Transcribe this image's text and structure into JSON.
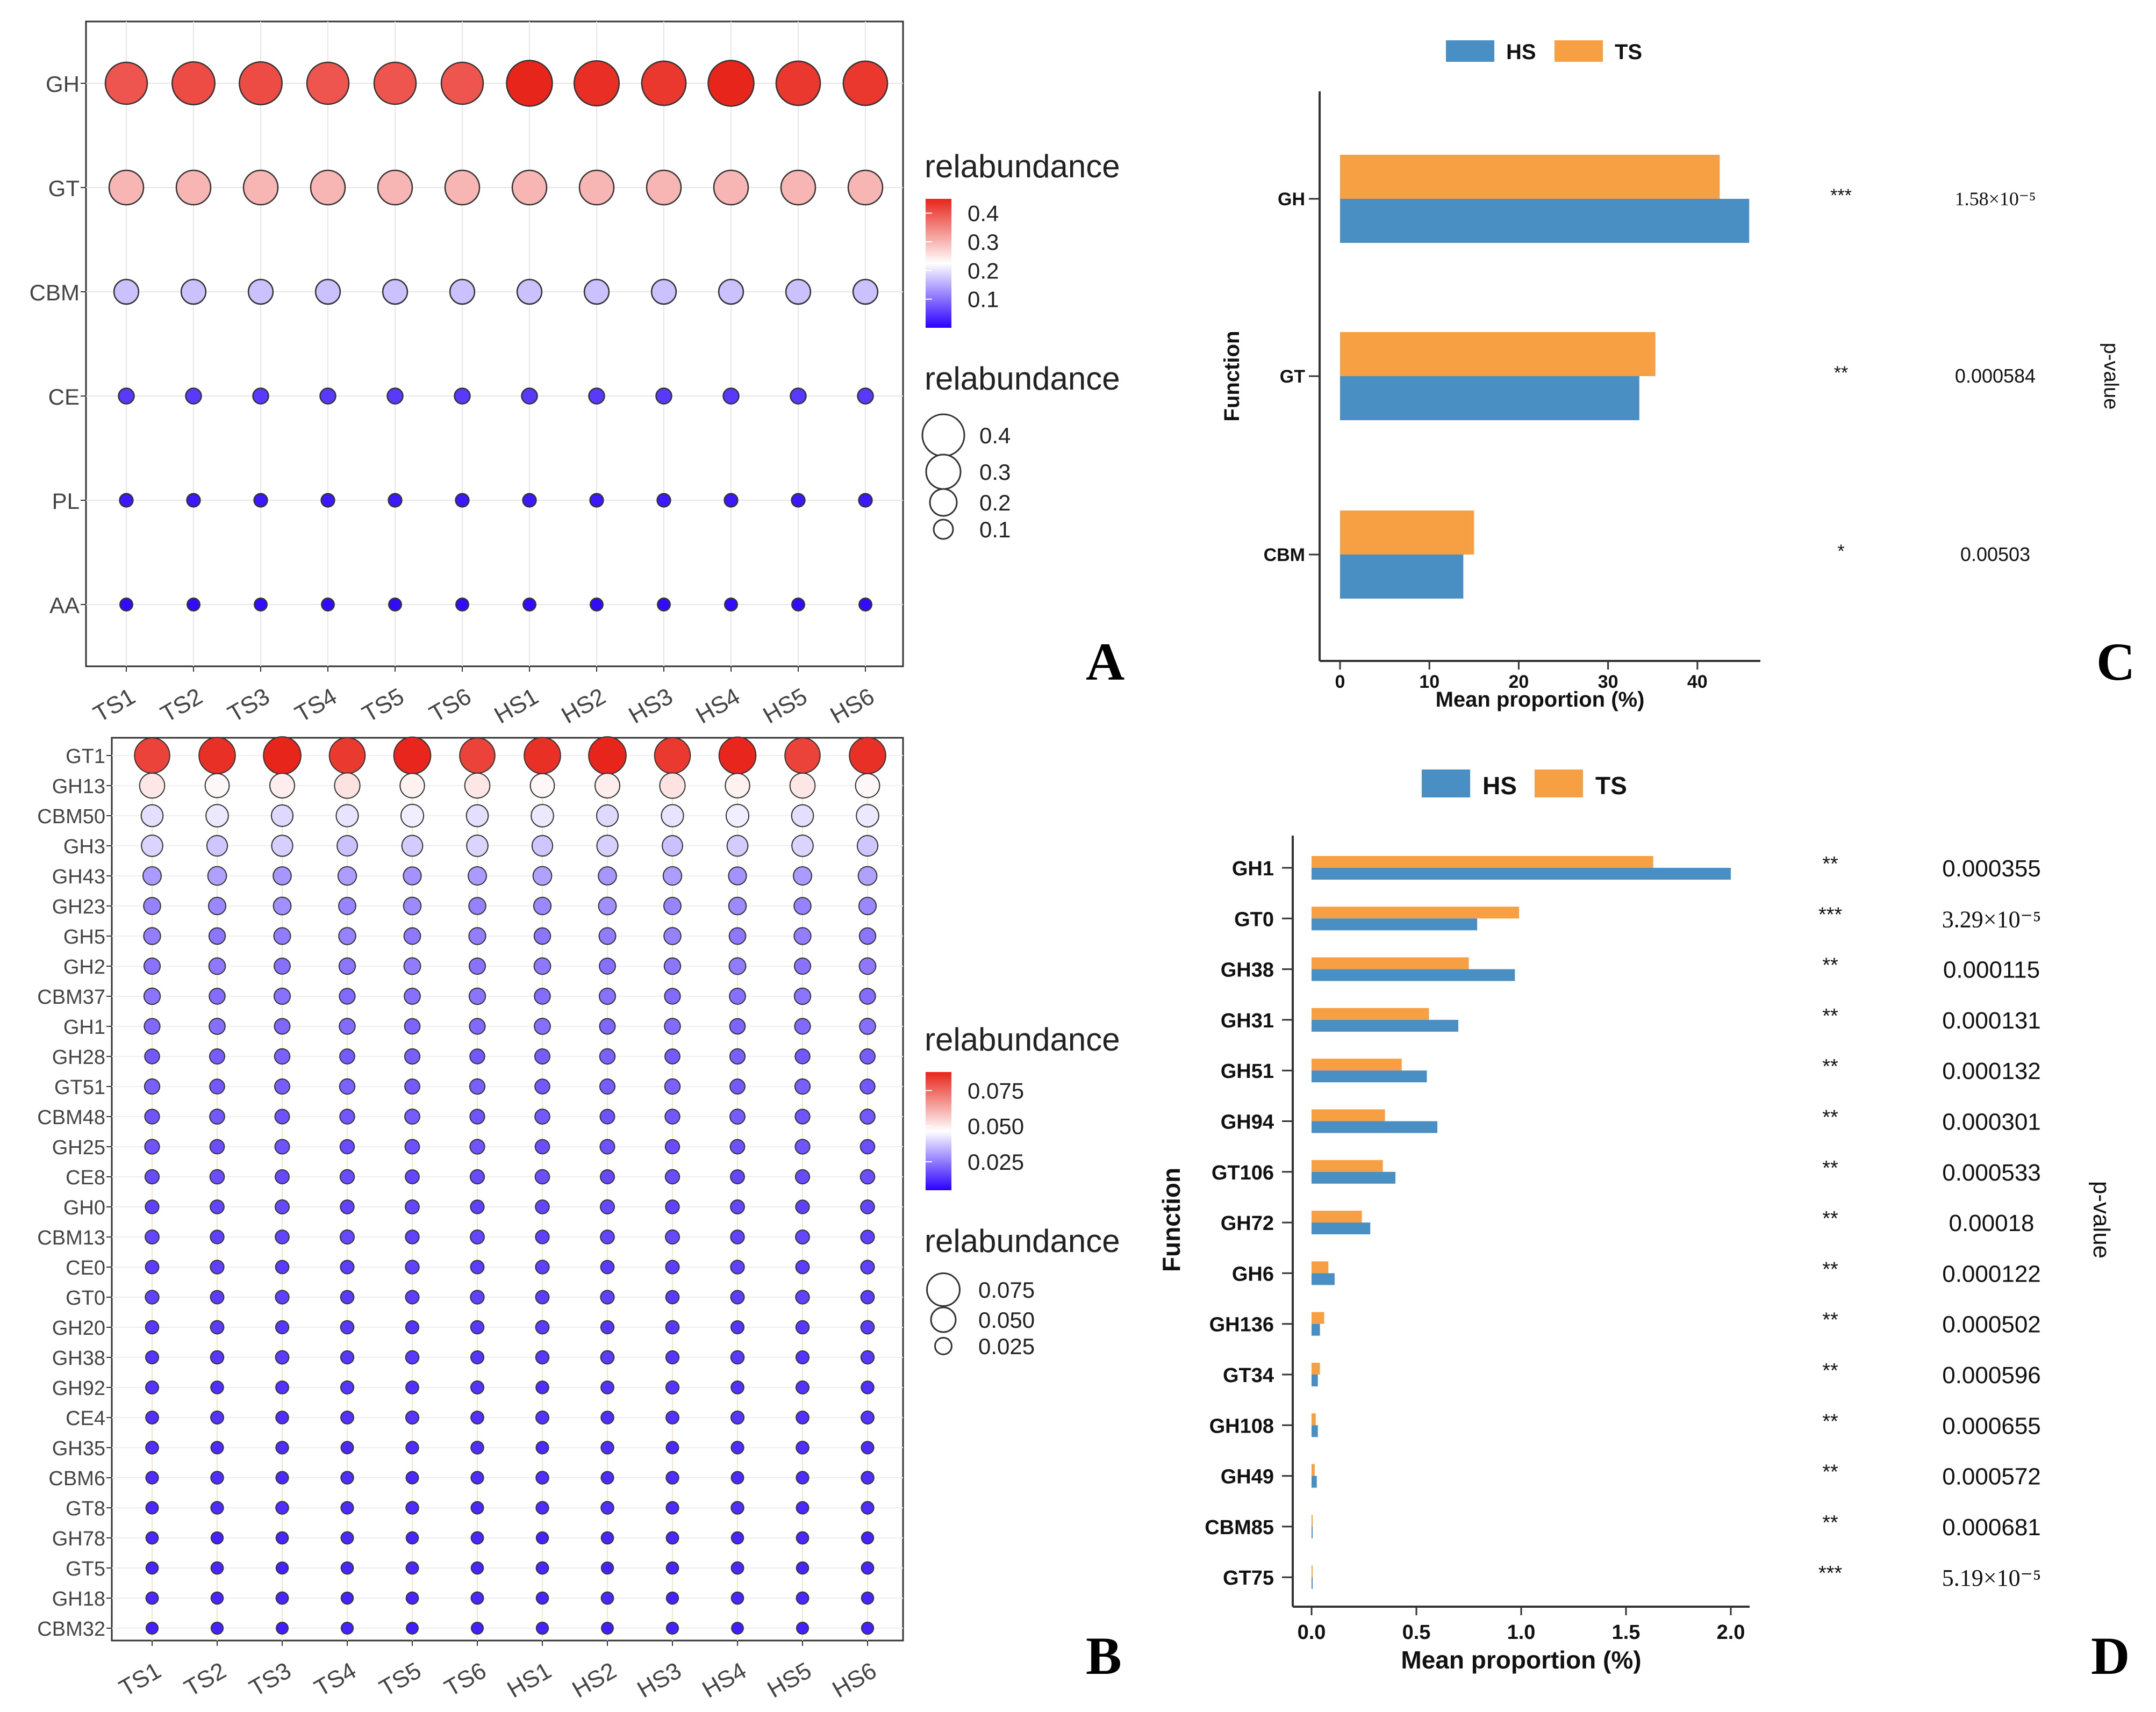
{
  "panel_letters": {
    "a": "A",
    "b": "B",
    "c": "C",
    "d": "D"
  },
  "colors": {
    "hs": "#4a8fc4",
    "ts": "#f7a043",
    "grad_low": "#2b00ff",
    "grad_mid": "#ffffff",
    "grad_high": "#e8251b"
  },
  "chart_data": [
    {
      "id": "A",
      "type": "bubble",
      "categories_x": [
        "TS1",
        "TS2",
        "TS3",
        "TS4",
        "TS5",
        "TS6",
        "HS1",
        "HS2",
        "HS3",
        "HS4",
        "HS5",
        "HS6"
      ],
      "categories_y": [
        "GH",
        "GT",
        "CBM",
        "CE",
        "PL",
        "AA"
      ],
      "values": [
        [
          0.4,
          0.41,
          0.41,
          0.4,
          0.4,
          0.4,
          0.45,
          0.44,
          0.43,
          0.45,
          0.43,
          0.43
        ],
        [
          0.3,
          0.3,
          0.3,
          0.3,
          0.3,
          0.3,
          0.3,
          0.3,
          0.3,
          0.3,
          0.3,
          0.3
        ],
        [
          0.17,
          0.17,
          0.17,
          0.17,
          0.17,
          0.17,
          0.17,
          0.17,
          0.17,
          0.17,
          0.17,
          0.17
        ],
        [
          0.05,
          0.05,
          0.05,
          0.05,
          0.05,
          0.05,
          0.05,
          0.05,
          0.05,
          0.05,
          0.05,
          0.05
        ],
        [
          0.02,
          0.02,
          0.02,
          0.02,
          0.02,
          0.02,
          0.02,
          0.02,
          0.02,
          0.02,
          0.02,
          0.02
        ],
        [
          0.01,
          0.01,
          0.01,
          0.01,
          0.01,
          0.01,
          0.01,
          0.01,
          0.01,
          0.01,
          0.01,
          0.01
        ]
      ],
      "color_legend": {
        "title": "relabundance",
        "ticks": [
          "0.4",
          "0.3",
          "0.2",
          "0.1"
        ],
        "tick_values": [
          0.4,
          0.3,
          0.2,
          0.1
        ],
        "range": [
          0.0,
          0.45
        ]
      },
      "size_legend": {
        "title": "relabundance",
        "labels": [
          "0.4",
          "0.3",
          "0.2",
          "0.1"
        ],
        "values": [
          0.4,
          0.3,
          0.2,
          0.1
        ]
      }
    },
    {
      "id": "B",
      "type": "bubble",
      "categories_x": [
        "TS1",
        "TS2",
        "TS3",
        "TS4",
        "TS5",
        "TS6",
        "HS1",
        "HS2",
        "HS3",
        "HS4",
        "HS5",
        "HS6"
      ],
      "categories_y": [
        "GT1",
        "GH13",
        "CBM50",
        "GH3",
        "GH43",
        "GH23",
        "GH5",
        "GH2",
        "CBM37",
        "GH1",
        "GH28",
        "GT51",
        "CBM48",
        "GH25",
        "CE8",
        "GH0",
        "CBM13",
        "CE0",
        "GT0",
        "GH20",
        "GH38",
        "GH92",
        "CE4",
        "GH35",
        "CBM6",
        "GT8",
        "GH78",
        "GT5",
        "GH18",
        "CBM32"
      ],
      "row_values": [
        0.086,
        0.05,
        0.042,
        0.038,
        0.03,
        0.027,
        0.025,
        0.024,
        0.023,
        0.022,
        0.02,
        0.02,
        0.019,
        0.018,
        0.017,
        0.016,
        0.016,
        0.015,
        0.015,
        0.014,
        0.014,
        0.013,
        0.013,
        0.012,
        0.012,
        0.012,
        0.011,
        0.011,
        0.011,
        0.01
      ],
      "color_legend": {
        "title": "relabundance",
        "ticks": [
          "0.075",
          "0.050",
          "0.025"
        ],
        "tick_values": [
          0.075,
          0.05,
          0.025
        ],
        "range": [
          0.005,
          0.088
        ]
      },
      "size_legend": {
        "title": "relabundance",
        "labels": [
          "0.075",
          "0.050",
          "0.025"
        ],
        "values": [
          0.075,
          0.05,
          0.025
        ]
      }
    },
    {
      "id": "C",
      "type": "bar",
      "orientation": "horizontal",
      "categories": [
        "GH",
        "GT",
        "CBM"
      ],
      "series": [
        {
          "name": "HS",
          "values": [
            45.8,
            33.5,
            13.8
          ]
        },
        {
          "name": "TS",
          "values": [
            42.5,
            35.3,
            15.0
          ]
        }
      ],
      "significance": [
        "***",
        "**",
        "*"
      ],
      "p_values": [
        "1.58×10⁻⁵",
        "0.000584",
        "0.00503"
      ],
      "xlabel": "Mean proportion (%)",
      "ylabel": "Function",
      "right_label": "p-value",
      "xlim": [
        0,
        47
      ],
      "xticks": [
        0,
        10,
        20,
        30,
        40
      ]
    },
    {
      "id": "D",
      "type": "bar",
      "orientation": "horizontal",
      "categories": [
        "GH1",
        "GT0",
        "GH38",
        "GH31",
        "GH51",
        "GH94",
        "GT106",
        "GH72",
        "GH6",
        "GH136",
        "GT34",
        "GH108",
        "GH49",
        "CBM85",
        "GT75"
      ],
      "series": [
        {
          "name": "HS",
          "values": [
            2.0,
            0.79,
            0.97,
            0.7,
            0.55,
            0.6,
            0.4,
            0.28,
            0.11,
            0.04,
            0.03,
            0.03,
            0.025,
            0.005,
            0.005
          ]
        },
        {
          "name": "TS",
          "values": [
            1.63,
            0.99,
            0.75,
            0.56,
            0.43,
            0.35,
            0.34,
            0.24,
            0.08,
            0.06,
            0.04,
            0.02,
            0.015,
            0.005,
            0.005
          ]
        }
      ],
      "significance": [
        "**",
        "***",
        "**",
        "**",
        "**",
        "**",
        "**",
        "**",
        "**",
        "**",
        "**",
        "**",
        "**",
        "**",
        "***"
      ],
      "p_values": [
        "0.000355",
        "3.29×10⁻⁵",
        "0.000115",
        "0.000131",
        "0.000132",
        "0.000301",
        "0.000533",
        "0.00018",
        "0.000122",
        "0.000502",
        "0.000596",
        "0.000655",
        "0.000572",
        "0.000681",
        "5.19×10⁻⁵"
      ],
      "xlabel": "Mean proportion (%)",
      "ylabel": "Function",
      "right_label": "p-value",
      "xlim": [
        0,
        2.08
      ],
      "xticks": [
        "0.0",
        "0.5",
        "1.0",
        "1.5",
        "2.0"
      ]
    }
  ]
}
